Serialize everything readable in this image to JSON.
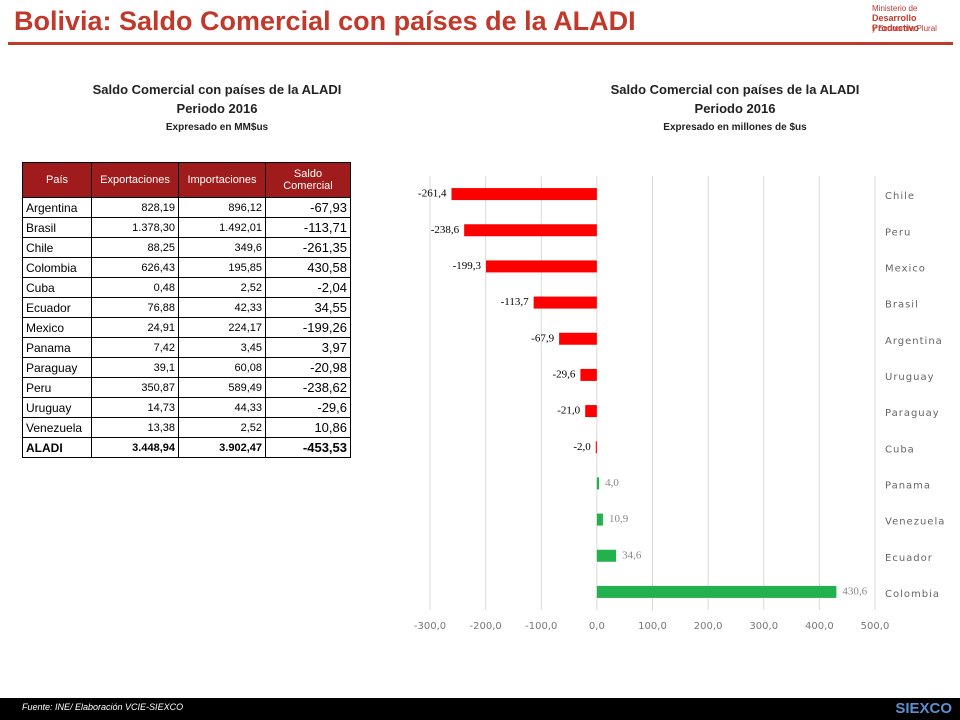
{
  "header": {
    "title": "Bolivia: Saldo Comercial con países de la ALADI",
    "logo": [
      "Ministerio de",
      "Desarrollo Productivo",
      "y Economía Plural"
    ]
  },
  "table": {
    "titles": [
      "Saldo Comercial con países de la ALADI",
      "Periodo 2016",
      "Expresado en MM$us"
    ],
    "columns": [
      "País",
      "Exportaciones",
      "Importaciones",
      "Saldo Comercial"
    ],
    "rows": [
      [
        "Argentina",
        "828,19",
        "896,12",
        "-67,93"
      ],
      [
        "Brasil",
        "1.378,30",
        "1.492,01",
        "-113,71"
      ],
      [
        "Chile",
        "88,25",
        "349,6",
        "-261,35"
      ],
      [
        "Colombia",
        "626,43",
        "195,85",
        "430,58"
      ],
      [
        "Cuba",
        "0,48",
        "2,52",
        "-2,04"
      ],
      [
        "Ecuador",
        "76,88",
        "42,33",
        "34,55"
      ],
      [
        "Mexico",
        "24,91",
        "224,17",
        "-199,26"
      ],
      [
        "Panama",
        "7,42",
        "3,45",
        "3,97"
      ],
      [
        "Paraguay",
        "39,1",
        "60,08",
        "-20,98"
      ],
      [
        "Peru",
        "350,87",
        "589,49",
        "-238,62"
      ],
      [
        "Uruguay",
        "14,73",
        "44,33",
        "-29,6"
      ],
      [
        "Venezuela",
        "13,38",
        "2,52",
        "10,86"
      ],
      [
        "ALADI",
        "3.448,94",
        "3.902,47",
        "-453,53"
      ]
    ]
  },
  "chart_data": {
    "type": "hbar",
    "title": [
      "Saldo Comercial con países de la ALADI",
      "Periodo 2016",
      "Expresado en millones de $us"
    ],
    "categories": [
      "Chile",
      "Peru",
      "Mexico",
      "Brasil",
      "Argentina",
      "Uruguay",
      "Paraguay",
      "Cuba",
      "Panama",
      "Venezuela",
      "Ecuador",
      "Colombia"
    ],
    "values": [
      -261.4,
      -238.6,
      -199.3,
      -113.7,
      -67.9,
      -29.6,
      -21.0,
      -2.0,
      4.0,
      10.9,
      34.6,
      430.6
    ],
    "value_labels": [
      "-261,4",
      "-238,6",
      "-199,3",
      "-113,7",
      "-67,9",
      "-29,6",
      "-21,0",
      "-2,0",
      "4,0",
      "10,9",
      "34,6",
      "430,6"
    ],
    "negative_color": "#ff0000",
    "positive_color": "#22b14c",
    "xlim": [
      -300,
      500
    ],
    "xticks": [
      {
        "value": -300,
        "label": "-300,0"
      },
      {
        "value": -200,
        "label": "-200,0"
      },
      {
        "value": -100,
        "label": "-100,0"
      },
      {
        "value": 0,
        "label": "0,0"
      },
      {
        "value": 100,
        "label": "100,0"
      },
      {
        "value": 200,
        "label": "200,0"
      },
      {
        "value": 300,
        "label": "300,0"
      },
      {
        "value": 400,
        "label": "400,0"
      },
      {
        "value": 500,
        "label": "500,0"
      }
    ],
    "grid": true
  },
  "footer": {
    "source": "Fuente: INE/ Elaboración VCIE-SIEXCO",
    "logo": "SIEXCO"
  }
}
